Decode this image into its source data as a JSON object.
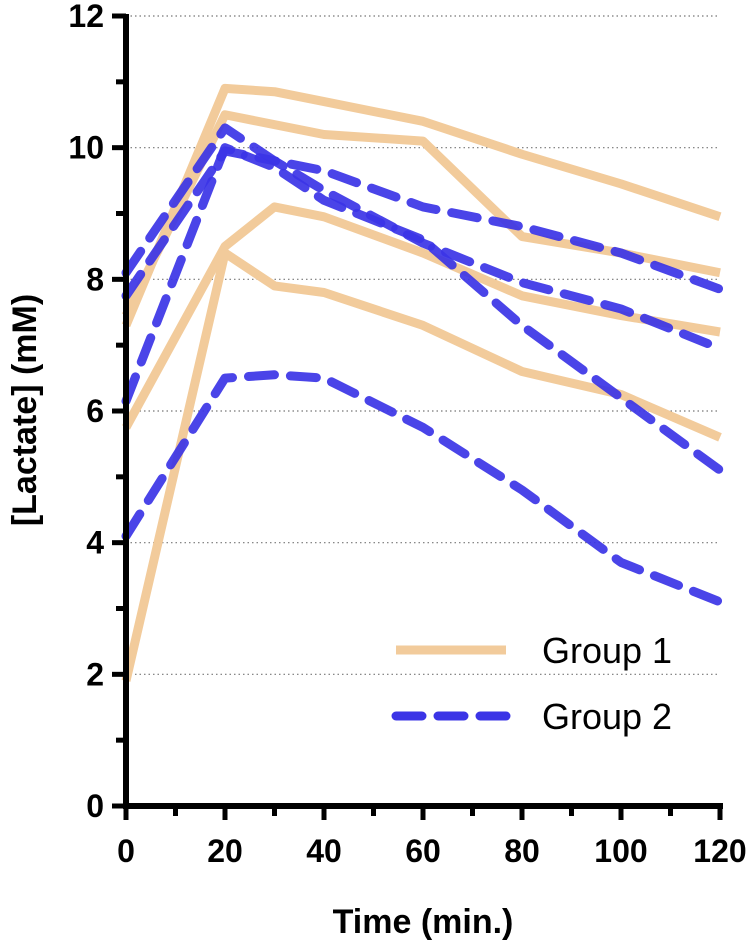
{
  "chart_data": {
    "type": "line",
    "xlabel": "Time (min.)",
    "ylabel": "[Lactate] (mM)",
    "xlim": [
      0,
      120
    ],
    "ylim": [
      0,
      12
    ],
    "xticks": [
      0,
      20,
      40,
      60,
      80,
      100,
      120
    ],
    "yticks": [
      0,
      2,
      4,
      6,
      8,
      10,
      12
    ],
    "grid": "horizontal dotted",
    "legend_position": "bottom-right",
    "groups": [
      {
        "name": "Group 1",
        "style": "solid",
        "color": "#F2CB9B"
      },
      {
        "name": "Group 2",
        "style": "dashed",
        "color": "#3B34E6"
      }
    ],
    "series": [
      {
        "group": "Group 1",
        "x": [
          0,
          20,
          30,
          40,
          60,
          80,
          100,
          120
        ],
        "values": [
          7.3,
          10.9,
          10.85,
          10.7,
          10.4,
          9.9,
          9.45,
          8.95
        ]
      },
      {
        "group": "Group 1",
        "x": [
          0,
          20,
          40,
          60,
          80,
          100,
          120
        ],
        "values": [
          7.45,
          10.5,
          10.2,
          10.1,
          8.65,
          8.4,
          8.1
        ]
      },
      {
        "group": "Group 1",
        "x": [
          0,
          20,
          30,
          40,
          60,
          80,
          100,
          120
        ],
        "values": [
          5.75,
          8.5,
          9.1,
          8.95,
          8.4,
          7.75,
          7.45,
          7.2
        ]
      },
      {
        "group": "Group 1",
        "x": [
          0,
          20,
          30,
          40,
          60,
          80,
          100,
          120
        ],
        "values": [
          1.9,
          8.4,
          7.9,
          7.8,
          7.3,
          6.6,
          6.25,
          5.6
        ]
      },
      {
        "group": "Group 2",
        "x": [
          0,
          20,
          30,
          40,
          60,
          80,
          100,
          120
        ],
        "values": [
          8.1,
          10.3,
          9.8,
          9.65,
          9.1,
          8.8,
          8.4,
          7.85
        ]
      },
      {
        "group": "Group 2",
        "x": [
          0,
          20,
          30,
          40,
          60,
          80,
          100,
          120
        ],
        "values": [
          7.75,
          9.95,
          9.8,
          9.35,
          8.55,
          7.95,
          7.55,
          6.95
        ]
      },
      {
        "group": "Group 2",
        "x": [
          0,
          20,
          30,
          40,
          60,
          80,
          100,
          120
        ],
        "values": [
          6.15,
          10.0,
          9.7,
          9.2,
          8.6,
          7.3,
          6.2,
          5.1
        ]
      },
      {
        "group": "Group 2",
        "x": [
          0,
          20,
          30,
          40,
          60,
          80,
          100,
          120
        ],
        "values": [
          4.1,
          6.5,
          6.55,
          6.5,
          5.75,
          4.8,
          3.7,
          3.1
        ]
      }
    ]
  }
}
